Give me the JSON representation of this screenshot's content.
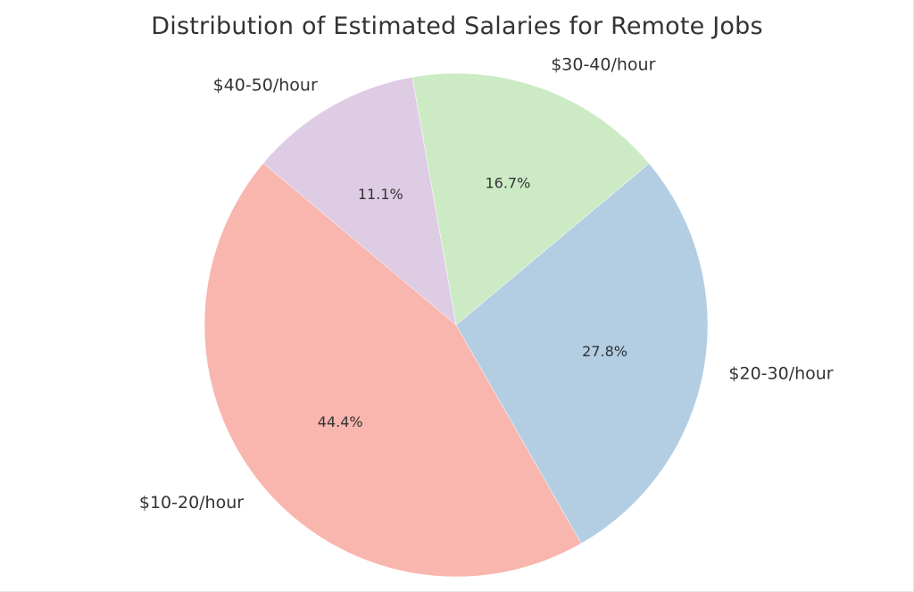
{
  "chart_data": {
    "type": "pie",
    "title": "Distribution of Estimated Salaries for Remote Jobs",
    "categories": [
      "$10-20/hour",
      "$20-30/hour",
      "$30-40/hour",
      "$40-50/hour"
    ],
    "values": [
      44.4,
      27.8,
      16.7,
      11.1
    ],
    "value_labels": [
      "44.4%",
      "27.8%",
      "16.7%",
      "11.1%"
    ],
    "colors": [
      "#f8b6ae",
      "#b3cde3",
      "#ccebc5",
      "#decbe4"
    ],
    "start_angle_deg": 140,
    "direction": "counterclockwise"
  }
}
